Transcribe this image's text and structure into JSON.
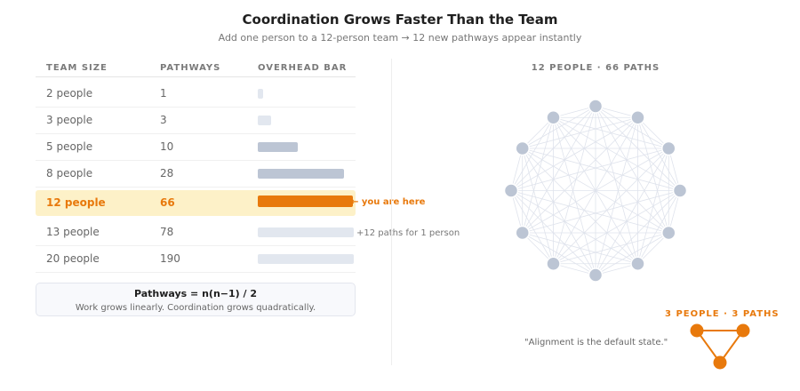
{
  "title": "Coordination Grows Faster Than the Team",
  "subtitle": "Add one person to a 12-person team → 12 new pathways appear instantly",
  "table": {
    "headers": [
      "TEAM SIZE",
      "PATHWAYS",
      "OVERHEAD BAR"
    ],
    "rows": [
      {
        "size": "2 people",
        "paths": "1",
        "bar_fraction": 0.06,
        "style": "faint"
      },
      {
        "size": "3 people",
        "paths": "3",
        "bar_fraction": 0.14,
        "style": "faint"
      },
      {
        "size": "5 people",
        "paths": "10",
        "bar_fraction": 0.42,
        "style": "mid"
      },
      {
        "size": "8 people",
        "paths": "28",
        "bar_fraction": 0.9,
        "style": "mid"
      },
      {
        "size": "12 people",
        "paths": "66",
        "bar_fraction": 0.99,
        "style": "highlight"
      },
      {
        "size": "13 people",
        "paths": "78",
        "bar_fraction": 1.0,
        "style": "faint"
      },
      {
        "size": "20 people",
        "paths": "190",
        "bar_fraction": 1.0,
        "style": "faint"
      }
    ],
    "highlight_note": "← you are here",
    "increment_note": "+12 paths for 1 person"
  },
  "formula": {
    "title": "Pathways = n(n−1) / 2",
    "caption": "Work grows linearly. Coordination grows quadratically."
  },
  "network": {
    "label": "12 PEOPLE · 66 PATHS",
    "node_count": 12
  },
  "small_network": {
    "label": "3 PEOPLE · 3 PATHS",
    "node_count": 3
  },
  "quote": "\"Alignment is the default state.\"",
  "colors": {
    "accent": "#e8790c",
    "highlight_bg": "#fdf1c8",
    "node": "#bcc5d4",
    "edge": "#dfe3ec",
    "bar_mid": "#bcc5d4",
    "bar_faint": "#e2e7ef"
  }
}
